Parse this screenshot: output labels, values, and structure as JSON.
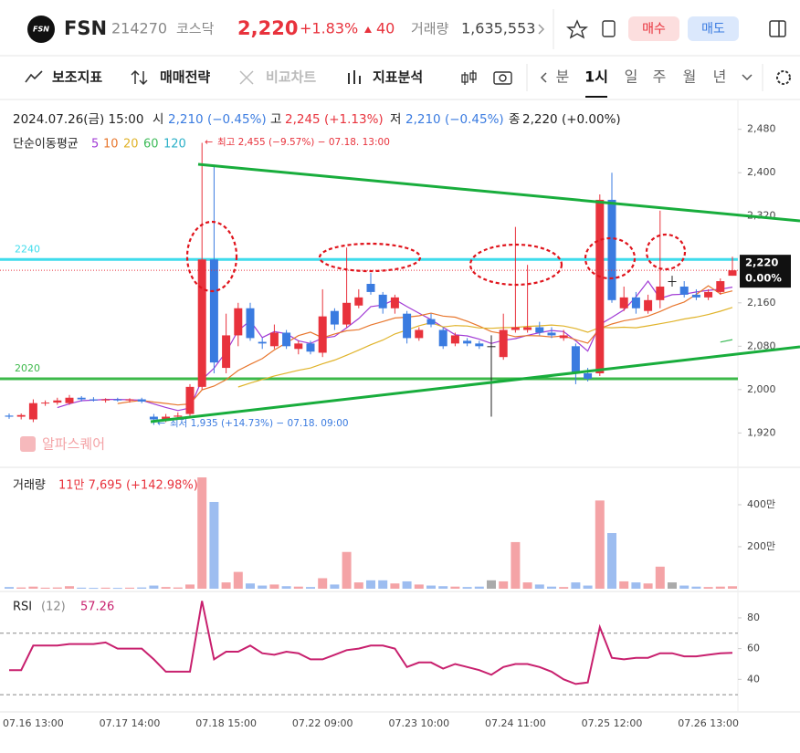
{
  "header": {
    "logo": "FSN",
    "name": "FSN",
    "code": "214270",
    "market": "코스닥",
    "price": "2,220",
    "change_pct": "+1.83%",
    "change": "40",
    "volume_label": "거래량",
    "volume": "1,635,553",
    "buy": "매수",
    "sell": "매도"
  },
  "toolbar": {
    "tools": [
      "보조지표",
      "매매전략",
      "비교차트",
      "지표분석"
    ],
    "periods": [
      "분",
      "1시",
      "일",
      "주",
      "월",
      "년"
    ],
    "active_period": 1
  },
  "chart": {
    "info": {
      "date": "2024.07.26(금) 15:00",
      "open_label": "시",
      "open": "2,210 (−0.45%)",
      "high_label": "고",
      "high": "2,245 (+1.13%)",
      "low_label": "저",
      "low": "2,210 (−0.45%)",
      "close_label": "종",
      "close": "2,220 (+0.00%)"
    },
    "ma": {
      "label": "단순이동평균",
      "periods": [
        5,
        10,
        20,
        60,
        120
      ],
      "colors": [
        "#a13bd5",
        "#e8772e",
        "#e0b32a",
        "#3dbb58",
        "#2cb0c8"
      ]
    },
    "max_note": "최고 2,455 (−9.57%) − 07.18. 13:00",
    "min_note": "최저 1,935 (+14.73%) − 07.18. 09:00",
    "levels": [
      {
        "value": 2240,
        "label": "2240",
        "color": "#3fdcec"
      },
      {
        "value": 2020,
        "label": "2020",
        "color": "#3cb94a"
      }
    ],
    "watermark": "알파스퀘어",
    "ylim": [
      1860,
      2530
    ],
    "yticks": [
      {
        "value": 2480,
        "label": "2,480"
      },
      {
        "value": 2400,
        "label": "2,400"
      },
      {
        "value": 2320,
        "label": "2,320"
      },
      {
        "value": 2160,
        "label": "2,160"
      },
      {
        "value": 2080,
        "label": "2,080"
      },
      {
        "value": 2000,
        "label": "2,000"
      },
      {
        "value": 1920,
        "label": "1,920"
      }
    ],
    "last": {
      "value": 2220,
      "price": "2,220",
      "pct": "0.00%"
    },
    "up_color": "#e8323c",
    "down_color": "#3a7be0",
    "open": [
      1952,
      1950,
      1945,
      1975,
      1976,
      1975,
      1985,
      1982,
      1980,
      1982,
      1980,
      1982,
      1950,
      1945,
      1950,
      1955,
      2005,
      2240,
      2040,
      2100,
      2150,
      2088,
      2080,
      2105,
      2075,
      2085,
      2068,
      2145,
      2120,
      2155,
      2195,
      2175,
      2150,
      2140,
      2095,
      2130,
      2110,
      2085,
      2090,
      2085,
      2080,
      2060,
      2110,
      2110,
      2115,
      2105,
      2095,
      2080,
      2030,
      2030,
      2350,
      2150,
      2170,
      2145,
      2165,
      2200,
      2190,
      2175,
      2170,
      2180,
      2210
    ],
    "high": [
      1956,
      1956,
      1982,
      1980,
      1985,
      1990,
      1988,
      1986,
      1984,
      1985,
      1984,
      1985,
      1955,
      1955,
      1958,
      2010,
      2455,
      2415,
      2140,
      2160,
      2160,
      2095,
      2120,
      2110,
      2090,
      2090,
      2185,
      2150,
      2262,
      2185,
      2215,
      2180,
      2175,
      2145,
      2115,
      2140,
      2115,
      2105,
      2095,
      2090,
      2100,
      2140,
      2300,
      2230,
      2125,
      2115,
      2110,
      2085,
      2040,
      2360,
      2400,
      2190,
      2180,
      2175,
      2330,
      2210,
      2200,
      2185,
      2185,
      2205,
      2245
    ],
    "low": [
      1946,
      1945,
      1940,
      1970,
      1972,
      1972,
      1978,
      1978,
      1976,
      1978,
      1976,
      1975,
      1935,
      1940,
      1945,
      1950,
      2000,
      2030,
      2030,
      2080,
      2090,
      2075,
      2075,
      2075,
      2065,
      2065,
      2060,
      2110,
      2115,
      2150,
      2175,
      2140,
      2140,
      2085,
      2090,
      2115,
      2075,
      2080,
      2080,
      2075,
      1950,
      2055,
      2105,
      2105,
      2100,
      2095,
      2090,
      2010,
      2015,
      2025,
      2160,
      2145,
      2140,
      2140,
      2150,
      2190,
      2170,
      2165,
      2165,
      2175,
      2210
    ],
    "close": [
      1950,
      1953,
      1975,
      1976,
      1980,
      1985,
      1982,
      1980,
      1982,
      1980,
      1982,
      1978,
      1945,
      1950,
      1952,
      2005,
      2240,
      2050,
      2100,
      2150,
      2095,
      2085,
      2105,
      2080,
      2085,
      2070,
      2135,
      2120,
      2160,
      2170,
      2180,
      2150,
      2170,
      2095,
      2110,
      2120,
      2080,
      2100,
      2085,
      2080,
      2080,
      2110,
      2115,
      2115,
      2105,
      2100,
      2100,
      2030,
      2020,
      2350,
      2165,
      2170,
      2150,
      2165,
      2190,
      2200,
      2175,
      2170,
      2180,
      2200,
      2220
    ],
    "xticks": [
      {
        "index": 2,
        "label": "07.16 13:00"
      },
      {
        "index": 10,
        "label": "07.17 14:00"
      },
      {
        "index": 18,
        "label": "07.18 15:00"
      },
      {
        "index": 26,
        "label": "07.22 09:00"
      },
      {
        "index": 34,
        "label": "07.23 10:00"
      },
      {
        "index": 42,
        "label": "07.24 11:00"
      },
      {
        "index": 50,
        "label": "07.25 12:00"
      },
      {
        "index": 58,
        "label": "07.26 13:00"
      }
    ]
  },
  "volume": {
    "label": "거래량",
    "last": "11만 7,695 (+142.98%)",
    "values": [
      8,
      6,
      10,
      5,
      6,
      12,
      5,
      4,
      5,
      4,
      5,
      6,
      15,
      8,
      6,
      20,
      530,
      413,
      30,
      80,
      25,
      15,
      20,
      12,
      10,
      8,
      50,
      20,
      175,
      30,
      40,
      40,
      25,
      35,
      20,
      15,
      12,
      10,
      8,
      10,
      40,
      35,
      222,
      30,
      20,
      10,
      8,
      30,
      15,
      420,
      265,
      35,
      30,
      25,
      105,
      30,
      15,
      10,
      8,
      10,
      11.7695
    ],
    "ylim": [
      0,
      565
    ],
    "yticks": [
      {
        "value": 400,
        "label": "400만"
      },
      {
        "value": 200,
        "label": "200만"
      }
    ],
    "up_color": "#f4a3a6",
    "down_color": "#9dbdf0",
    "flat_color": "#aaaaaa"
  },
  "rsi": {
    "label": "RSI",
    "period": "(12)",
    "last": "57.26",
    "color": "#c8206e",
    "values": [
      46,
      46,
      62,
      62,
      62,
      63,
      63,
      63,
      64,
      60,
      60,
      60,
      53,
      45,
      45,
      45,
      91,
      53,
      58,
      58,
      62,
      57,
      56,
      58,
      57,
      53,
      53,
      56,
      59,
      60,
      62,
      62,
      60,
      48,
      51,
      51,
      47,
      50,
      48,
      46,
      43,
      48,
      50,
      50,
      48,
      45,
      40,
      37,
      38,
      74,
      54,
      53,
      54,
      54,
      57,
      57,
      55,
      55,
      56,
      57,
      57.26
    ],
    "ylim": [
      20,
      96
    ],
    "yticks": [
      80,
      60,
      40
    ],
    "bands": [
      70,
      30
    ]
  }
}
